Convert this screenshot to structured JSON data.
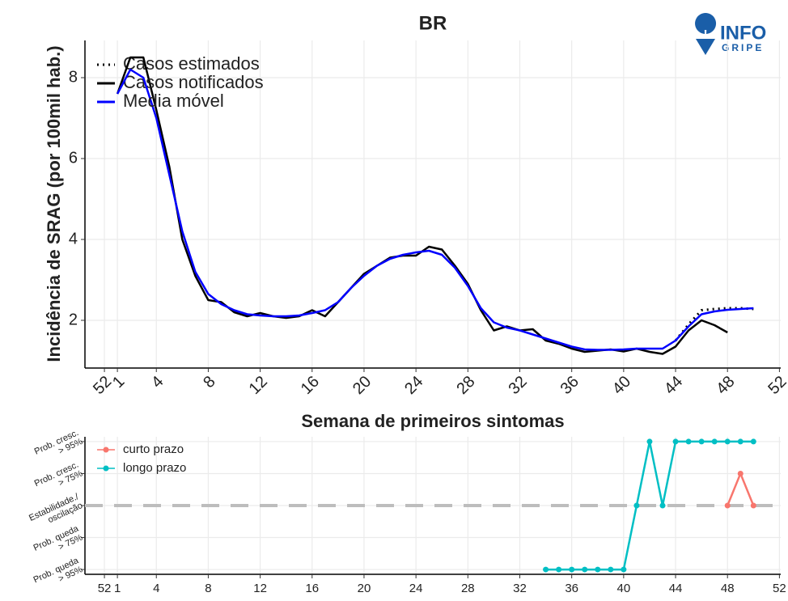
{
  "logo": {
    "line1": "INFO",
    "line2": "GRIPE"
  },
  "chart_data": [
    {
      "type": "line",
      "title": "BR",
      "x_label": "Semana de primeiros sintomas",
      "y_label": "Incidência de SRAG (por 100mil hab.)",
      "x": [
        1,
        2,
        3,
        4,
        5,
        6,
        7,
        8,
        9,
        10,
        11,
        12,
        13,
        14,
        15,
        16,
        17,
        18,
        19,
        20,
        21,
        22,
        23,
        24,
        25,
        26,
        27,
        28,
        29,
        30,
        31,
        32,
        33,
        34,
        35,
        36,
        37,
        38,
        39,
        40,
        41,
        42,
        43,
        44,
        45,
        46,
        47,
        48,
        49,
        50
      ],
      "xlim": [
        -1.5,
        52.1
      ],
      "xticks": [
        {
          "value": 0,
          "label": "52"
        },
        1,
        4,
        8,
        12,
        16,
        20,
        24,
        28,
        32,
        36,
        40,
        44,
        48,
        {
          "value": 52,
          "label": "52"
        }
      ],
      "ylim": [
        0.82,
        8.92
      ],
      "yticks": [
        2,
        4,
        6,
        8
      ],
      "grid": true,
      "legend": "top-left",
      "series": [
        {
          "name": "Casos estimados",
          "color": "#000000",
          "dash": "dotted",
          "values": [
            null,
            null,
            null,
            null,
            null,
            null,
            null,
            null,
            null,
            null,
            null,
            null,
            null,
            null,
            null,
            null,
            null,
            null,
            null,
            null,
            null,
            null,
            null,
            null,
            null,
            null,
            null,
            null,
            null,
            null,
            null,
            null,
            null,
            null,
            null,
            null,
            null,
            null,
            null,
            null,
            null,
            null,
            null,
            1.5,
            1.9,
            2.25,
            2.28,
            2.3,
            2.3,
            2.28
          ]
        },
        {
          "name": "Casos notificados",
          "color": "#000000",
          "values": [
            7.6,
            8.5,
            8.5,
            7.2,
            5.8,
            4.0,
            3.1,
            2.5,
            2.45,
            2.2,
            2.1,
            2.18,
            2.1,
            2.06,
            2.1,
            2.25,
            2.1,
            2.45,
            2.8,
            3.15,
            3.35,
            3.55,
            3.6,
            3.6,
            3.82,
            3.75,
            3.35,
            2.9,
            2.25,
            1.75,
            1.85,
            1.75,
            1.78,
            1.5,
            1.42,
            1.3,
            1.22,
            1.25,
            1.28,
            1.23,
            1.3,
            1.22,
            1.17,
            1.35,
            1.75,
            2.0,
            1.88,
            1.7,
            null,
            null
          ]
        },
        {
          "name": "Media móvel",
          "color": "#0000FF",
          "values": [
            7.6,
            8.2,
            8.0,
            7.0,
            5.6,
            4.2,
            3.2,
            2.65,
            2.4,
            2.25,
            2.15,
            2.12,
            2.1,
            2.1,
            2.12,
            2.18,
            2.25,
            2.45,
            2.8,
            3.1,
            3.35,
            3.52,
            3.62,
            3.68,
            3.72,
            3.62,
            3.3,
            2.85,
            2.3,
            1.95,
            1.82,
            1.75,
            1.65,
            1.55,
            1.45,
            1.35,
            1.28,
            1.27,
            1.27,
            1.28,
            1.3,
            1.3,
            1.3,
            1.5,
            1.85,
            2.15,
            2.22,
            2.26,
            2.28,
            2.3
          ]
        }
      ]
    },
    {
      "type": "line",
      "markers": true,
      "hline": 0,
      "x": [
        34,
        35,
        36,
        37,
        38,
        39,
        40,
        41,
        42,
        43,
        44,
        45,
        46,
        47,
        48,
        49,
        50
      ],
      "xlim": [
        -1.5,
        52.1
      ],
      "xticks": [
        {
          "value": 0,
          "label": "52"
        },
        1,
        4,
        8,
        12,
        16,
        20,
        24,
        28,
        32,
        36,
        40,
        44,
        48,
        {
          "value": 52,
          "label": "52"
        }
      ],
      "ylim": [
        -2.15,
        2.15
      ],
      "yticks": [
        {
          "value": -2,
          "label": [
            "Prob. queda",
            "> 95%"
          ]
        },
        {
          "value": -1,
          "label": [
            "Prob. queda",
            "> 75%"
          ]
        },
        {
          "value": 0,
          "label": [
            "Estabilidade./",
            "oscilação"
          ]
        },
        {
          "value": 1,
          "label": [
            "Prob. cresc.",
            "> 75%"
          ]
        },
        {
          "value": 2,
          "label": [
            "Prob. cresc.",
            "> 95%"
          ]
        }
      ],
      "grid": true,
      "legend": "top-left",
      "series": [
        {
          "name": "curto prazo",
          "color": "#F8766D",
          "values": [
            null,
            null,
            null,
            null,
            null,
            null,
            null,
            null,
            null,
            null,
            null,
            null,
            null,
            null,
            0,
            1,
            0
          ]
        },
        {
          "name": "longo prazo",
          "color": "#00BFC4",
          "values": [
            -2,
            -2,
            -2,
            -2,
            -2,
            -2,
            -2,
            0,
            2,
            0,
            2,
            2,
            2,
            2,
            2,
            2,
            2
          ]
        }
      ]
    }
  ]
}
